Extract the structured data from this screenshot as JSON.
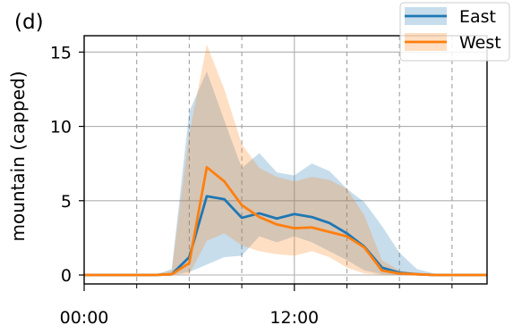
{
  "chart_data": {
    "type": "line",
    "panel_label": "(d)",
    "title": "",
    "xlabel": "",
    "ylabel": "mountain (capped)",
    "xlim": [
      0,
      23
    ],
    "ylim": [
      -0.6,
      16.1
    ],
    "x_ticks": [
      {
        "value": 0,
        "label": "00:00"
      },
      {
        "value": 12,
        "label": "12:00"
      }
    ],
    "x_minor_ticks": [
      3,
      6,
      9,
      15,
      18,
      21
    ],
    "x_dashed_grid": [
      3,
      6,
      9,
      15,
      18,
      21
    ],
    "y_ticks": [
      0,
      5,
      10,
      15
    ],
    "y_grid": [
      0,
      5,
      10,
      15
    ],
    "legend_position": "top-right",
    "x": [
      0,
      1,
      2,
      3,
      4,
      5,
      6,
      7,
      8,
      9,
      10,
      11,
      12,
      13,
      14,
      15,
      16,
      17,
      18,
      19,
      20,
      21,
      22,
      23
    ],
    "series": [
      {
        "name": "East",
        "color": "#1f77b4",
        "values": [
          0,
          0,
          0,
          0,
          0,
          0.05,
          1.2,
          5.3,
          5.1,
          3.85,
          4.15,
          3.8,
          4.1,
          3.9,
          3.5,
          2.8,
          1.9,
          0.5,
          0.15,
          0.05,
          0,
          0,
          0,
          0
        ],
        "band_low": [
          0,
          0,
          0,
          0,
          0,
          0,
          0.2,
          0.7,
          1.2,
          1.3,
          2.6,
          2.2,
          2.6,
          2.2,
          1.6,
          1.0,
          0.3,
          0.05,
          0,
          0,
          0,
          0,
          0,
          0
        ],
        "band_high": [
          0,
          0,
          0,
          0,
          0,
          0.4,
          11.0,
          13.7,
          10.4,
          7.2,
          8.2,
          6.9,
          6.7,
          7.5,
          7.0,
          5.8,
          4.9,
          3.3,
          1.5,
          0.4,
          0.1,
          0,
          0,
          0
        ]
      },
      {
        "name": "West",
        "color": "#ff7f0e",
        "values": [
          0,
          0,
          0,
          0,
          0,
          0.05,
          0.8,
          7.25,
          6.3,
          4.7,
          3.9,
          3.4,
          3.15,
          3.2,
          2.9,
          2.6,
          1.85,
          0.3,
          0.1,
          0.05,
          0,
          0,
          0,
          0
        ],
        "band_low": [
          0,
          0,
          0,
          0,
          0,
          0,
          0.05,
          2.3,
          2.8,
          2.0,
          1.6,
          1.4,
          1.3,
          1.6,
          1.2,
          0.5,
          0.1,
          0,
          0,
          0,
          0,
          0,
          0,
          0
        ],
        "band_high": [
          0,
          0,
          0,
          0,
          0,
          0.3,
          9.5,
          15.5,
          12.5,
          8.8,
          7.2,
          6.6,
          6.3,
          6.6,
          6.4,
          5.8,
          4.0,
          1.0,
          0.3,
          0.15,
          0.05,
          0,
          0,
          0
        ]
      }
    ]
  }
}
